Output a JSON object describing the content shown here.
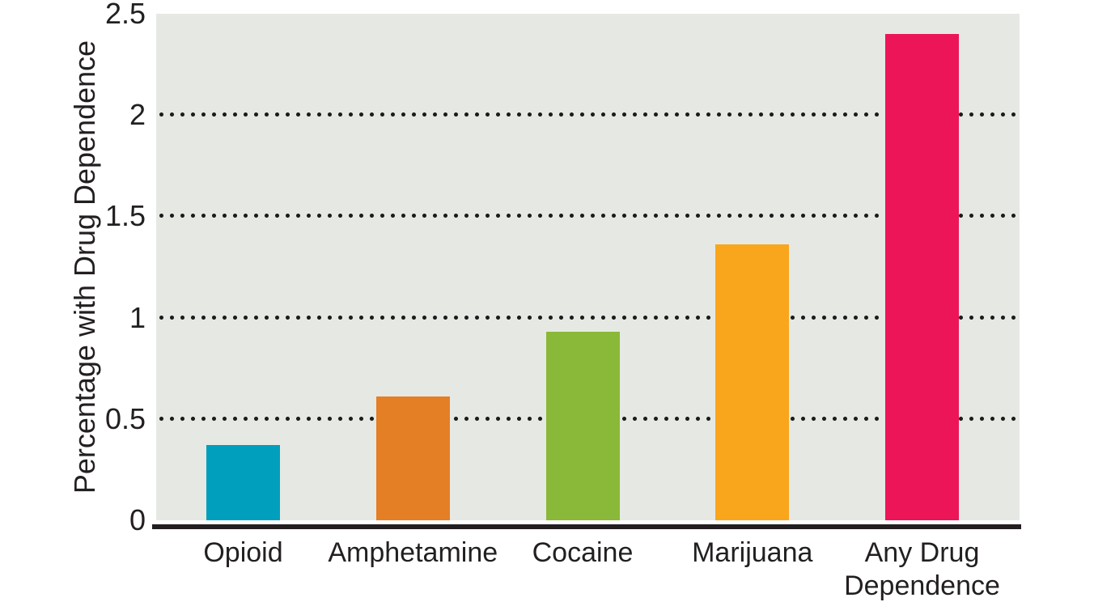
{
  "figure": {
    "background": "#ffffff",
    "plot_background": "#e6e9e3",
    "ink_color": "#231f20",
    "grid_color": "#1c1c1c"
  },
  "chart_data": {
    "type": "bar",
    "title": "",
    "xlabel": "",
    "ylabel": "Percentage with Drug Dependence",
    "categories": [
      "Opioid",
      "Amphetamine",
      "Cocaine",
      "Marijuana",
      "Any Drug Dependence"
    ],
    "values": [
      0.37,
      0.61,
      0.93,
      1.36,
      2.4
    ],
    "bar_colors": [
      "#009fbd",
      "#e57f25",
      "#8ab838",
      "#f9a61d",
      "#ec1557"
    ],
    "ylim": [
      0,
      2.5
    ],
    "yticks": [
      0,
      0.5,
      1,
      1.5,
      2,
      2.5
    ],
    "ytick_labels": [
      "0",
      "0.5",
      "1",
      "1.5",
      "2",
      "2.5"
    ],
    "gridlines": [
      0.5,
      1,
      1.5,
      2
    ],
    "grid_style": "dotted",
    "legend": "none"
  }
}
